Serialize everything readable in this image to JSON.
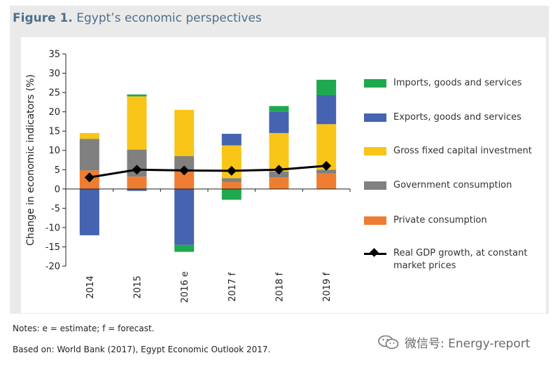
{
  "figure": {
    "number": "Figure 1.",
    "title": "Egypt’s economic perspectives"
  },
  "colors": {
    "imports": "#1ea84f",
    "exports": "#4563b0",
    "investment": "#f8c518",
    "government": "#808080",
    "private": "#ee7d31",
    "gdp": "#000000",
    "title": "#4f6f8c"
  },
  "chart_data": {
    "type": "bar",
    "stacked": true,
    "ylabel": "Change in economic indicators (%)",
    "xlabel": "",
    "ylim": [
      -20,
      35
    ],
    "yticks": [
      35,
      30,
      25,
      20,
      15,
      10,
      5,
      0,
      -5,
      -10,
      -15,
      -20
    ],
    "categories": [
      "2014",
      "2015",
      "2016 e",
      "2017 f",
      "2018 f",
      "2019 f"
    ],
    "series": [
      {
        "name": "Private consumption",
        "key": "private",
        "values": [
          4.8,
          3.2,
          4.5,
          1.8,
          3.0,
          4.0
        ]
      },
      {
        "name": "Government consumption",
        "key": "government",
        "values": [
          8.2,
          7.0,
          4.0,
          1.0,
          1.5,
          1.0
        ]
      },
      {
        "name": "Gross fixed capital investment",
        "key": "investment",
        "values": [
          1.5,
          13.8,
          12.0,
          8.5,
          10.0,
          11.8
        ]
      },
      {
        "name": "Exports, goods and services",
        "key": "exports",
        "values": [
          -12.0,
          -0.5,
          -14.5,
          3.0,
          5.5,
          7.5
        ]
      },
      {
        "name": "Imports, goods and services",
        "key": "imports",
        "values": [
          0.0,
          0.5,
          -1.8,
          -2.8,
          1.5,
          4.0
        ]
      }
    ],
    "line_series": {
      "name": "Real GDP growth, at constant market prices",
      "values": [
        3.0,
        5.0,
        4.8,
        4.7,
        5.0,
        6.0
      ]
    },
    "legend_position": "right",
    "grid": false
  },
  "legend": {
    "items": [
      {
        "key": "imports",
        "label": "Imports, goods and services"
      },
      {
        "key": "exports",
        "label": "Exports, goods and services"
      },
      {
        "key": "investment",
        "label": "Gross fixed capital investment"
      },
      {
        "key": "government",
        "label": "Government consumption"
      },
      {
        "key": "private",
        "label": "Private consumption"
      }
    ],
    "line_label_1": "Real GDP growth, at constant",
    "line_label_2": "market prices"
  },
  "notes": {
    "note": "Notes: e = estimate; f = forecast.",
    "source": "Based on: World Bank (2017), Egypt Economic Outlook 2017."
  },
  "watermark": {
    "text": "微信号: Energy-report",
    "icon": "wechat-icon"
  }
}
